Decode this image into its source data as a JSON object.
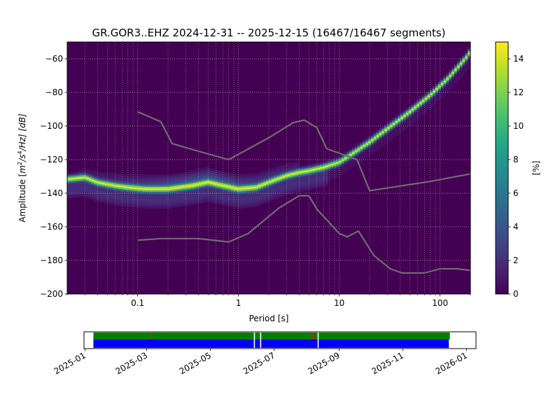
{
  "chart_data": [
    {
      "type": "heatmap",
      "title": "GR.GOR3..EHZ   2024-12-31 -- 2025-12-15  (16467/16467 segments)",
      "xlabel": "Period [s]",
      "ylabel": "Amplitude [m²/s⁴/Hz] [dB]",
      "ylabel_parts": {
        "pre": "Amplitude [",
        "m": "m",
        "exp2": "2",
        "mid": "/s",
        "exp4": "4",
        "post": "/Hz] [dB]"
      },
      "x_scale": "log",
      "xlim": [
        0.02,
        200
      ],
      "ylim": [
        -200,
        -50
      ],
      "x_ticks": [
        {
          "value": 0.1,
          "label": "0.1"
        },
        {
          "value": 1,
          "label": "1"
        },
        {
          "value": 10,
          "label": "10"
        },
        {
          "value": 100,
          "label": "100"
        }
      ],
      "y_ticks": [
        {
          "value": -60,
          "label": "−60"
        },
        {
          "value": -80,
          "label": "−80"
        },
        {
          "value": -100,
          "label": "−100"
        },
        {
          "value": -120,
          "label": "−120"
        },
        {
          "value": -140,
          "label": "−140"
        },
        {
          "value": -160,
          "label": "−160"
        },
        {
          "value": -180,
          "label": "−180"
        },
        {
          "value": -200,
          "label": "−200"
        }
      ],
      "grid": true,
      "colormap": "viridis",
      "background_color": "#440154",
      "colorbar": {
        "label": "[%]",
        "range": [
          0,
          15
        ],
        "ticks": [
          {
            "value": 0,
            "label": "0"
          },
          {
            "value": 2,
            "label": "2"
          },
          {
            "value": 4,
            "label": "4"
          },
          {
            "value": 6,
            "label": "6"
          },
          {
            "value": 8,
            "label": "8"
          },
          {
            "value": 10,
            "label": "10"
          },
          {
            "value": 12,
            "label": "12"
          },
          {
            "value": 14,
            "label": "14"
          }
        ]
      },
      "ridge": [
        [
          0.02,
          -132
        ],
        [
          0.03,
          -131
        ],
        [
          0.04,
          -134
        ],
        [
          0.06,
          -136
        ],
        [
          0.08,
          -137
        ],
        [
          0.12,
          -138
        ],
        [
          0.2,
          -138
        ],
        [
          0.35,
          -136
        ],
        [
          0.5,
          -134
        ],
        [
          0.7,
          -136
        ],
        [
          1.0,
          -138
        ],
        [
          1.5,
          -137
        ],
        [
          2.2,
          -133
        ],
        [
          3.0,
          -130
        ],
        [
          4.0,
          -128
        ],
        [
          5.0,
          -127
        ],
        [
          7.0,
          -125
        ],
        [
          10,
          -122
        ],
        [
          15,
          -115
        ],
        [
          20,
          -110
        ],
        [
          30,
          -102
        ],
        [
          50,
          -92
        ],
        [
          80,
          -82
        ],
        [
          120,
          -72
        ],
        [
          180,
          -60
        ],
        [
          200,
          -56
        ]
      ],
      "ridge_peak_percent": 14,
      "scatter_percent": 3,
      "noise_models": [
        {
          "color": "#6e6e6e",
          "points": [
            [
              0.1,
              -91.5
            ],
            [
              0.17,
              -97.5
            ],
            [
              0.22,
              -110.5
            ],
            [
              0.4,
              -115
            ],
            [
              0.8,
              -120
            ],
            [
              2.0,
              -107
            ],
            [
              3.5,
              -98
            ],
            [
              4.5,
              -96.5
            ],
            [
              6.0,
              -101
            ],
            [
              7.5,
              -113.5
            ],
            [
              15,
              -120
            ],
            [
              20,
              -138.5
            ],
            [
              80,
              -133
            ],
            [
              200,
              -128.5
            ]
          ]
        },
        {
          "color": "#6e6e6e",
          "points": [
            [
              0.1,
              -168
            ],
            [
              0.17,
              -167
            ],
            [
              0.4,
              -167
            ],
            [
              0.8,
              -169
            ],
            [
              1.25,
              -164
            ],
            [
              2.5,
              -149
            ],
            [
              4.0,
              -141.5
            ],
            [
              5.0,
              -141.5
            ],
            [
              6.0,
              -149.5
            ],
            [
              10,
              -164
            ],
            [
              12,
              -166
            ],
            [
              15.5,
              -162.5
            ],
            [
              22,
              -177
            ],
            [
              32,
              -185
            ],
            [
              42,
              -187.5
            ],
            [
              70,
              -187.5
            ],
            [
              100,
              -185
            ],
            [
              150,
              -185
            ],
            [
              200,
              -186
            ]
          ]
        }
      ]
    },
    {
      "type": "timeline",
      "x_range": [
        "2024-12-31",
        "2026-01-10"
      ],
      "ticks": [
        "2025-01",
        "2025-03",
        "2025-05",
        "2025-07",
        "2025-09",
        "2025-11",
        "2026-01"
      ],
      "data_coverage": {
        "color": "#0000ff",
        "start": "2025-01-09",
        "end": "2025-12-15"
      },
      "psd_coverage": {
        "color": "#008000",
        "start": "2025-01-09",
        "end": "2025-12-16"
      },
      "gaps": [
        "2025-06-12",
        "2025-06-18",
        "2025-08-12"
      ],
      "gap_color": "#ffffff",
      "flags": [
        "2025-03-05",
        "2025-08-06",
        "2025-08-08"
      ],
      "flag_color": "#cc2200"
    }
  ]
}
